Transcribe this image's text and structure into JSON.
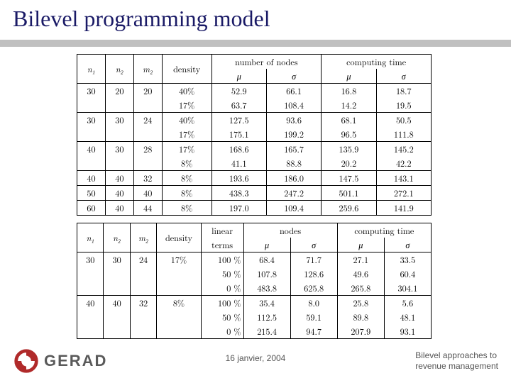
{
  "title": "Bilevel programming model",
  "colors": {
    "title": "#1a1a66",
    "underline": "#c0c0c0",
    "background": "#ffffff",
    "text": "#000000",
    "footer_text": "#555555",
    "logo_mark": "#b02a2a",
    "logo_text": "#5a5a5a",
    "border": "#000000"
  },
  "table1": {
    "headers": {
      "n1": "n₁",
      "n2": "n₂",
      "m2": "m₂",
      "density": "density",
      "nodes": "number of nodes",
      "time": "computing time",
      "mu": "μ",
      "sigma": "σ"
    },
    "col_widths_pct": [
      8,
      8,
      8,
      14,
      15.5,
      15.5,
      15.5,
      15.5
    ],
    "rows": [
      {
        "n1": "30",
        "n2": "20",
        "m2": "20",
        "density": "40%",
        "nodes_mu": "52.9",
        "nodes_sigma": "66.1",
        "time_mu": "16.8",
        "time_sigma": "18.7",
        "sep": true
      },
      {
        "n1": "",
        "n2": "",
        "m2": "",
        "density": "17%",
        "nodes_mu": "63.7",
        "nodes_sigma": "108.4",
        "time_mu": "14.2",
        "time_sigma": "19.5",
        "sep": false
      },
      {
        "n1": "30",
        "n2": "30",
        "m2": "24",
        "density": "40%",
        "nodes_mu": "127.5",
        "nodes_sigma": "93.6",
        "time_mu": "68.1",
        "time_sigma": "50.5",
        "sep": true
      },
      {
        "n1": "",
        "n2": "",
        "m2": "",
        "density": "17%",
        "nodes_mu": "175.1",
        "nodes_sigma": "199.2",
        "time_mu": "96.5",
        "time_sigma": "111.8",
        "sep": false
      },
      {
        "n1": "40",
        "n2": "30",
        "m2": "28",
        "density": "17%",
        "nodes_mu": "168.6",
        "nodes_sigma": "165.7",
        "time_mu": "135.9",
        "time_sigma": "145.2",
        "sep": true
      },
      {
        "n1": "",
        "n2": "",
        "m2": "",
        "density": "8%",
        "nodes_mu": "41.1",
        "nodes_sigma": "88.8",
        "time_mu": "20.2",
        "time_sigma": "42.2",
        "sep": false
      },
      {
        "n1": "40",
        "n2": "40",
        "m2": "32",
        "density": "8%",
        "nodes_mu": "193.6",
        "nodes_sigma": "186.0",
        "time_mu": "147.5",
        "time_sigma": "143.1",
        "sep": true
      },
      {
        "n1": "50",
        "n2": "40",
        "m2": "40",
        "density": "8%",
        "nodes_mu": "438.3",
        "nodes_sigma": "247.2",
        "time_mu": "501.1",
        "time_sigma": "272.1",
        "sep": true
      },
      {
        "n1": "60",
        "n2": "40",
        "m2": "44",
        "density": "8%",
        "nodes_mu": "197.0",
        "nodes_sigma": "109.4",
        "time_mu": "259.6",
        "time_sigma": "141.9",
        "sep": true
      }
    ]
  },
  "table2": {
    "headers": {
      "n1": "n₁",
      "n2": "n₂",
      "m2": "m₂",
      "density": "density",
      "linear": "linear",
      "terms": "terms",
      "nodes": "nodes",
      "time": "computing time",
      "mu": "μ",
      "sigma": "σ"
    },
    "col_widths_pct": [
      7.5,
      7.5,
      7.5,
      12.5,
      12,
      13.25,
      13.25,
      13.25,
      13.25
    ],
    "rows": [
      {
        "n1": "30",
        "n2": "30",
        "m2": "24",
        "density": "17%",
        "linear": "100 %",
        "nodes_mu": "68.4",
        "nodes_sigma": "71.7",
        "time_mu": "27.1",
        "time_sigma": "33.5",
        "sep": true
      },
      {
        "n1": "",
        "n2": "",
        "m2": "",
        "density": "",
        "linear": "50 %",
        "nodes_mu": "107.8",
        "nodes_sigma": "128.6",
        "time_mu": "49.6",
        "time_sigma": "60.4",
        "sep": false
      },
      {
        "n1": "",
        "n2": "",
        "m2": "",
        "density": "",
        "linear": "0 %",
        "nodes_mu": "483.8",
        "nodes_sigma": "625.8",
        "time_mu": "265.8",
        "time_sigma": "304.1",
        "sep": false
      },
      {
        "n1": "40",
        "n2": "40",
        "m2": "32",
        "density": "8%",
        "linear": "100 %",
        "nodes_mu": "35.4",
        "nodes_sigma": "8.0",
        "time_mu": "25.8",
        "time_sigma": "5.6",
        "sep": true
      },
      {
        "n1": "",
        "n2": "",
        "m2": "",
        "density": "",
        "linear": "50 %",
        "nodes_mu": "112.5",
        "nodes_sigma": "59.1",
        "time_mu": "89.8",
        "time_sigma": "48.1",
        "sep": false
      },
      {
        "n1": "",
        "n2": "",
        "m2": "",
        "density": "",
        "linear": "0 %",
        "nodes_mu": "215.4",
        "nodes_sigma": "94.7",
        "time_mu": "207.9",
        "time_sigma": "93.1",
        "sep": false
      }
    ]
  },
  "footer": {
    "date": "16 janvier, 2004",
    "right_line1": "Bilevel approaches to",
    "right_line2": "revenue management"
  },
  "logo": {
    "text": "GERAD"
  }
}
